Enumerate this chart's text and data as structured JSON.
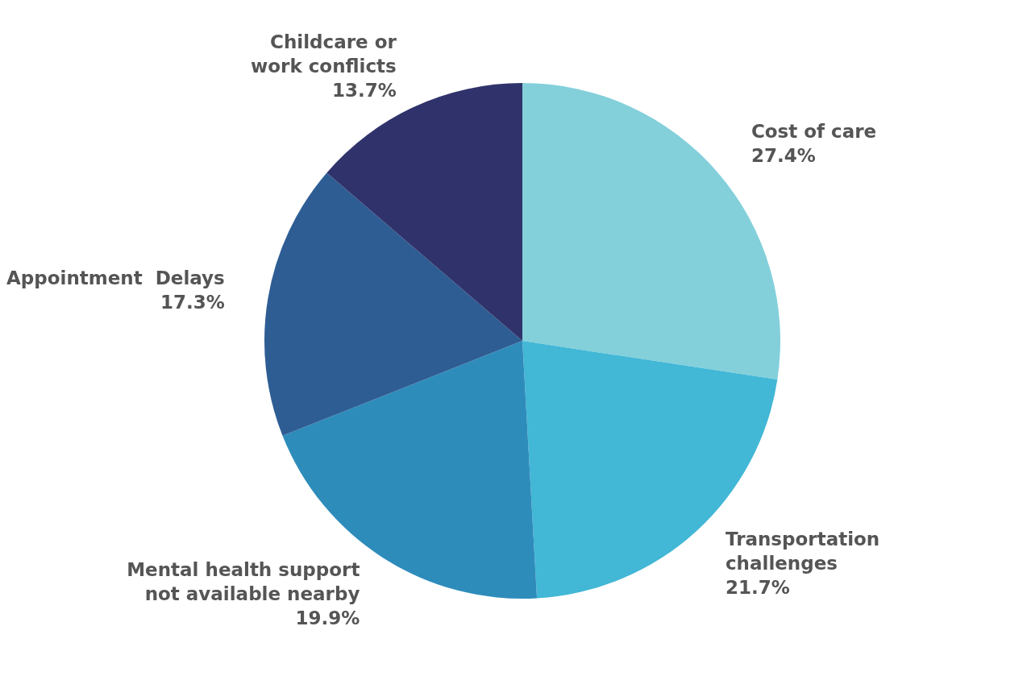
{
  "chart_data": {
    "type": "pie",
    "categories": [
      "Cost of care",
      "Transportation\nchallenges",
      "Mental health support\nnot available nearby",
      "Appointment  Delays",
      "Childcare or\nwork conflicts"
    ],
    "values": [
      27.4,
      21.7,
      19.9,
      17.3,
      13.7
    ],
    "colors": [
      "#83d0db",
      "#42b7d6",
      "#2e8cbb",
      "#2e5d94",
      "#30336b"
    ],
    "value_labels": [
      "27.4%",
      "21.7%",
      "19.9%",
      "17.3%",
      "13.7%"
    ]
  }
}
